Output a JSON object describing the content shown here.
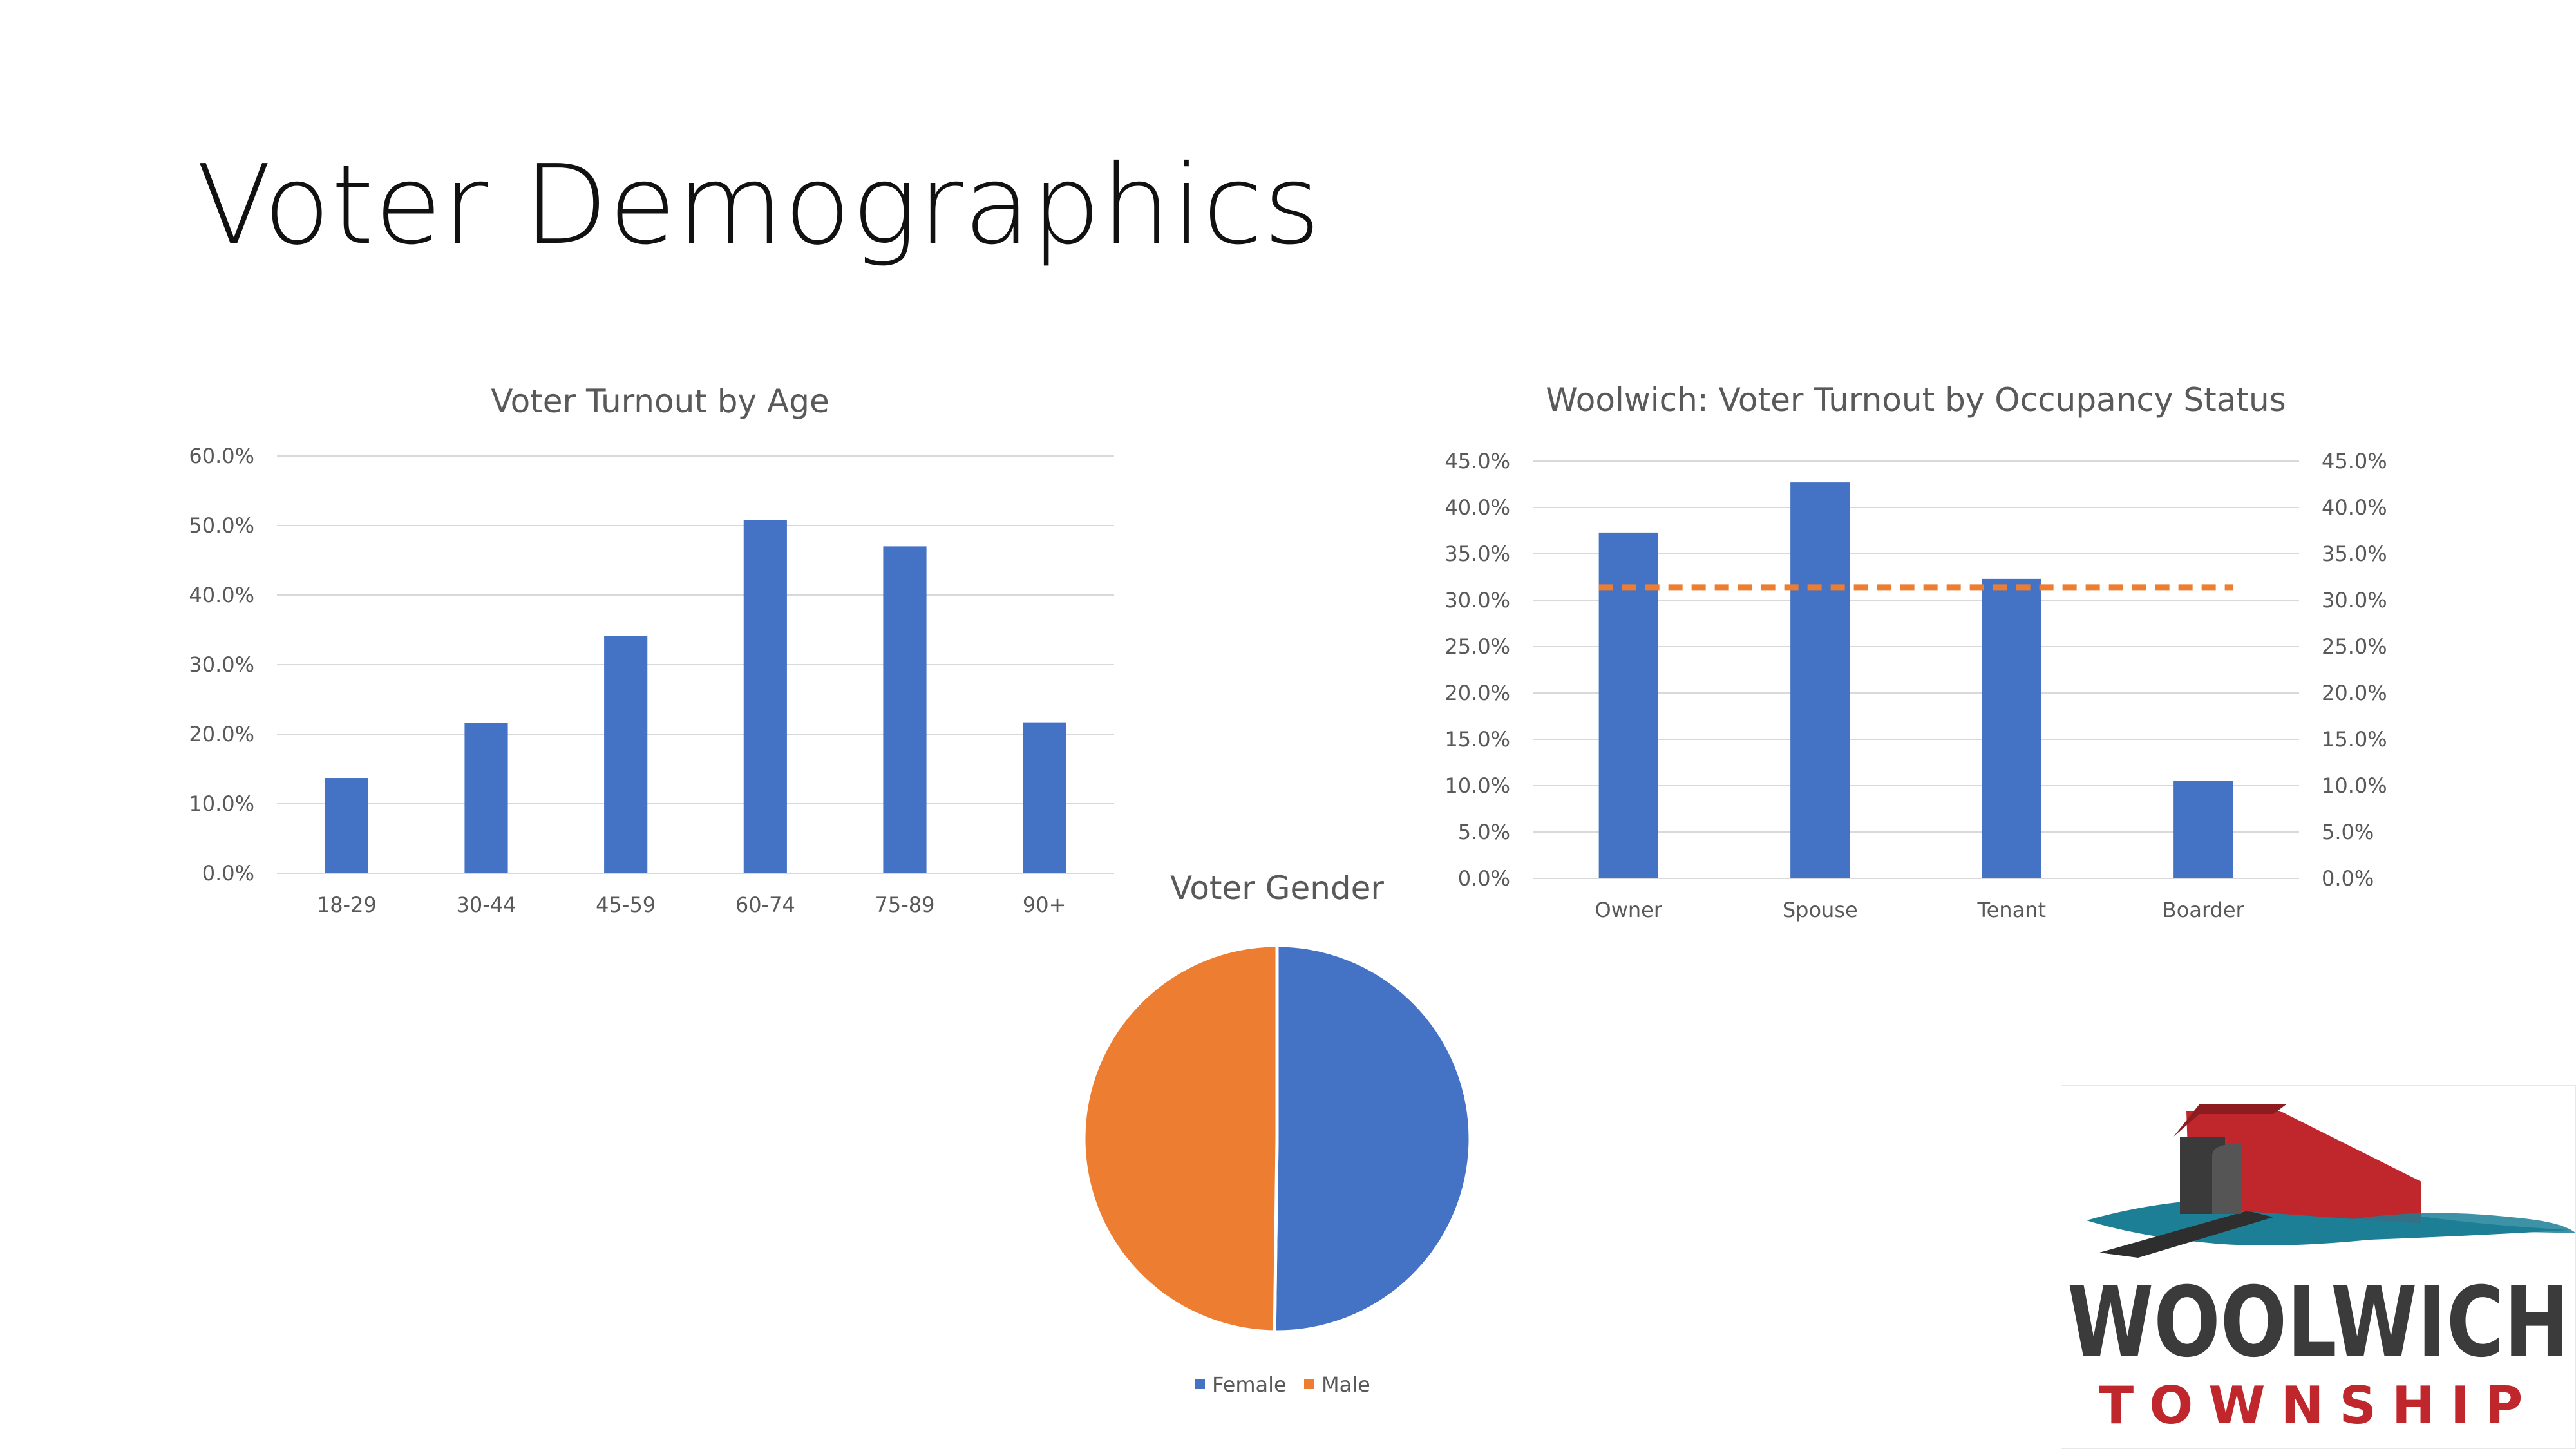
{
  "slide": {
    "title": "Voter Demographics"
  },
  "colors": {
    "blue": "#4472C4",
    "orange": "#ED7D31",
    "grid": "#D9D9D9",
    "text": "#595959"
  },
  "chart_data": [
    {
      "id": "age",
      "type": "bar",
      "title": "Voter Turnout by Age",
      "categories": [
        "18-29",
        "30-44",
        "45-59",
        "60-74",
        "75-89",
        "90+"
      ],
      "values": [
        0.137,
        0.216,
        0.341,
        0.508,
        0.47,
        0.217
      ],
      "ylim": [
        0,
        0.6
      ],
      "yticks": [
        "0.0%",
        "10.0%",
        "20.0%",
        "30.0%",
        "40.0%",
        "50.0%",
        "60.0%"
      ],
      "grid": true
    },
    {
      "id": "occupancy",
      "type": "bar",
      "title": "Woolwich: Voter Turnout by Occupancy Status",
      "categories": [
        "Owner",
        "Spouse",
        "Tenant",
        "Boarder"
      ],
      "values": [
        0.373,
        0.427,
        0.323,
        0.105
      ],
      "reference_line": {
        "value": 0.314,
        "style": "dashed",
        "color": "#ED7D31"
      },
      "ylim": [
        0,
        0.45
      ],
      "yticks": [
        "0.0%",
        "5.0%",
        "10.0%",
        "15.0%",
        "20.0%",
        "25.0%",
        "30.0%",
        "35.0%",
        "40.0%",
        "45.0%"
      ],
      "secondary_yticks": [
        "0.0%",
        "5.0%",
        "10.0%",
        "15.0%",
        "20.0%",
        "25.0%",
        "30.0%",
        "35.0%",
        "40.0%",
        "45.0%"
      ],
      "grid": true
    },
    {
      "id": "gender",
      "type": "pie",
      "title": "Voter Gender",
      "labels": [
        "Female",
        "Male"
      ],
      "values": [
        0.502,
        0.498
      ],
      "colors": [
        "#4472C4",
        "#ED7D31"
      ],
      "legend": "bottom"
    }
  ],
  "logo": {
    "line1": "WOOLWICH",
    "line2": "TOWNSHIP"
  }
}
